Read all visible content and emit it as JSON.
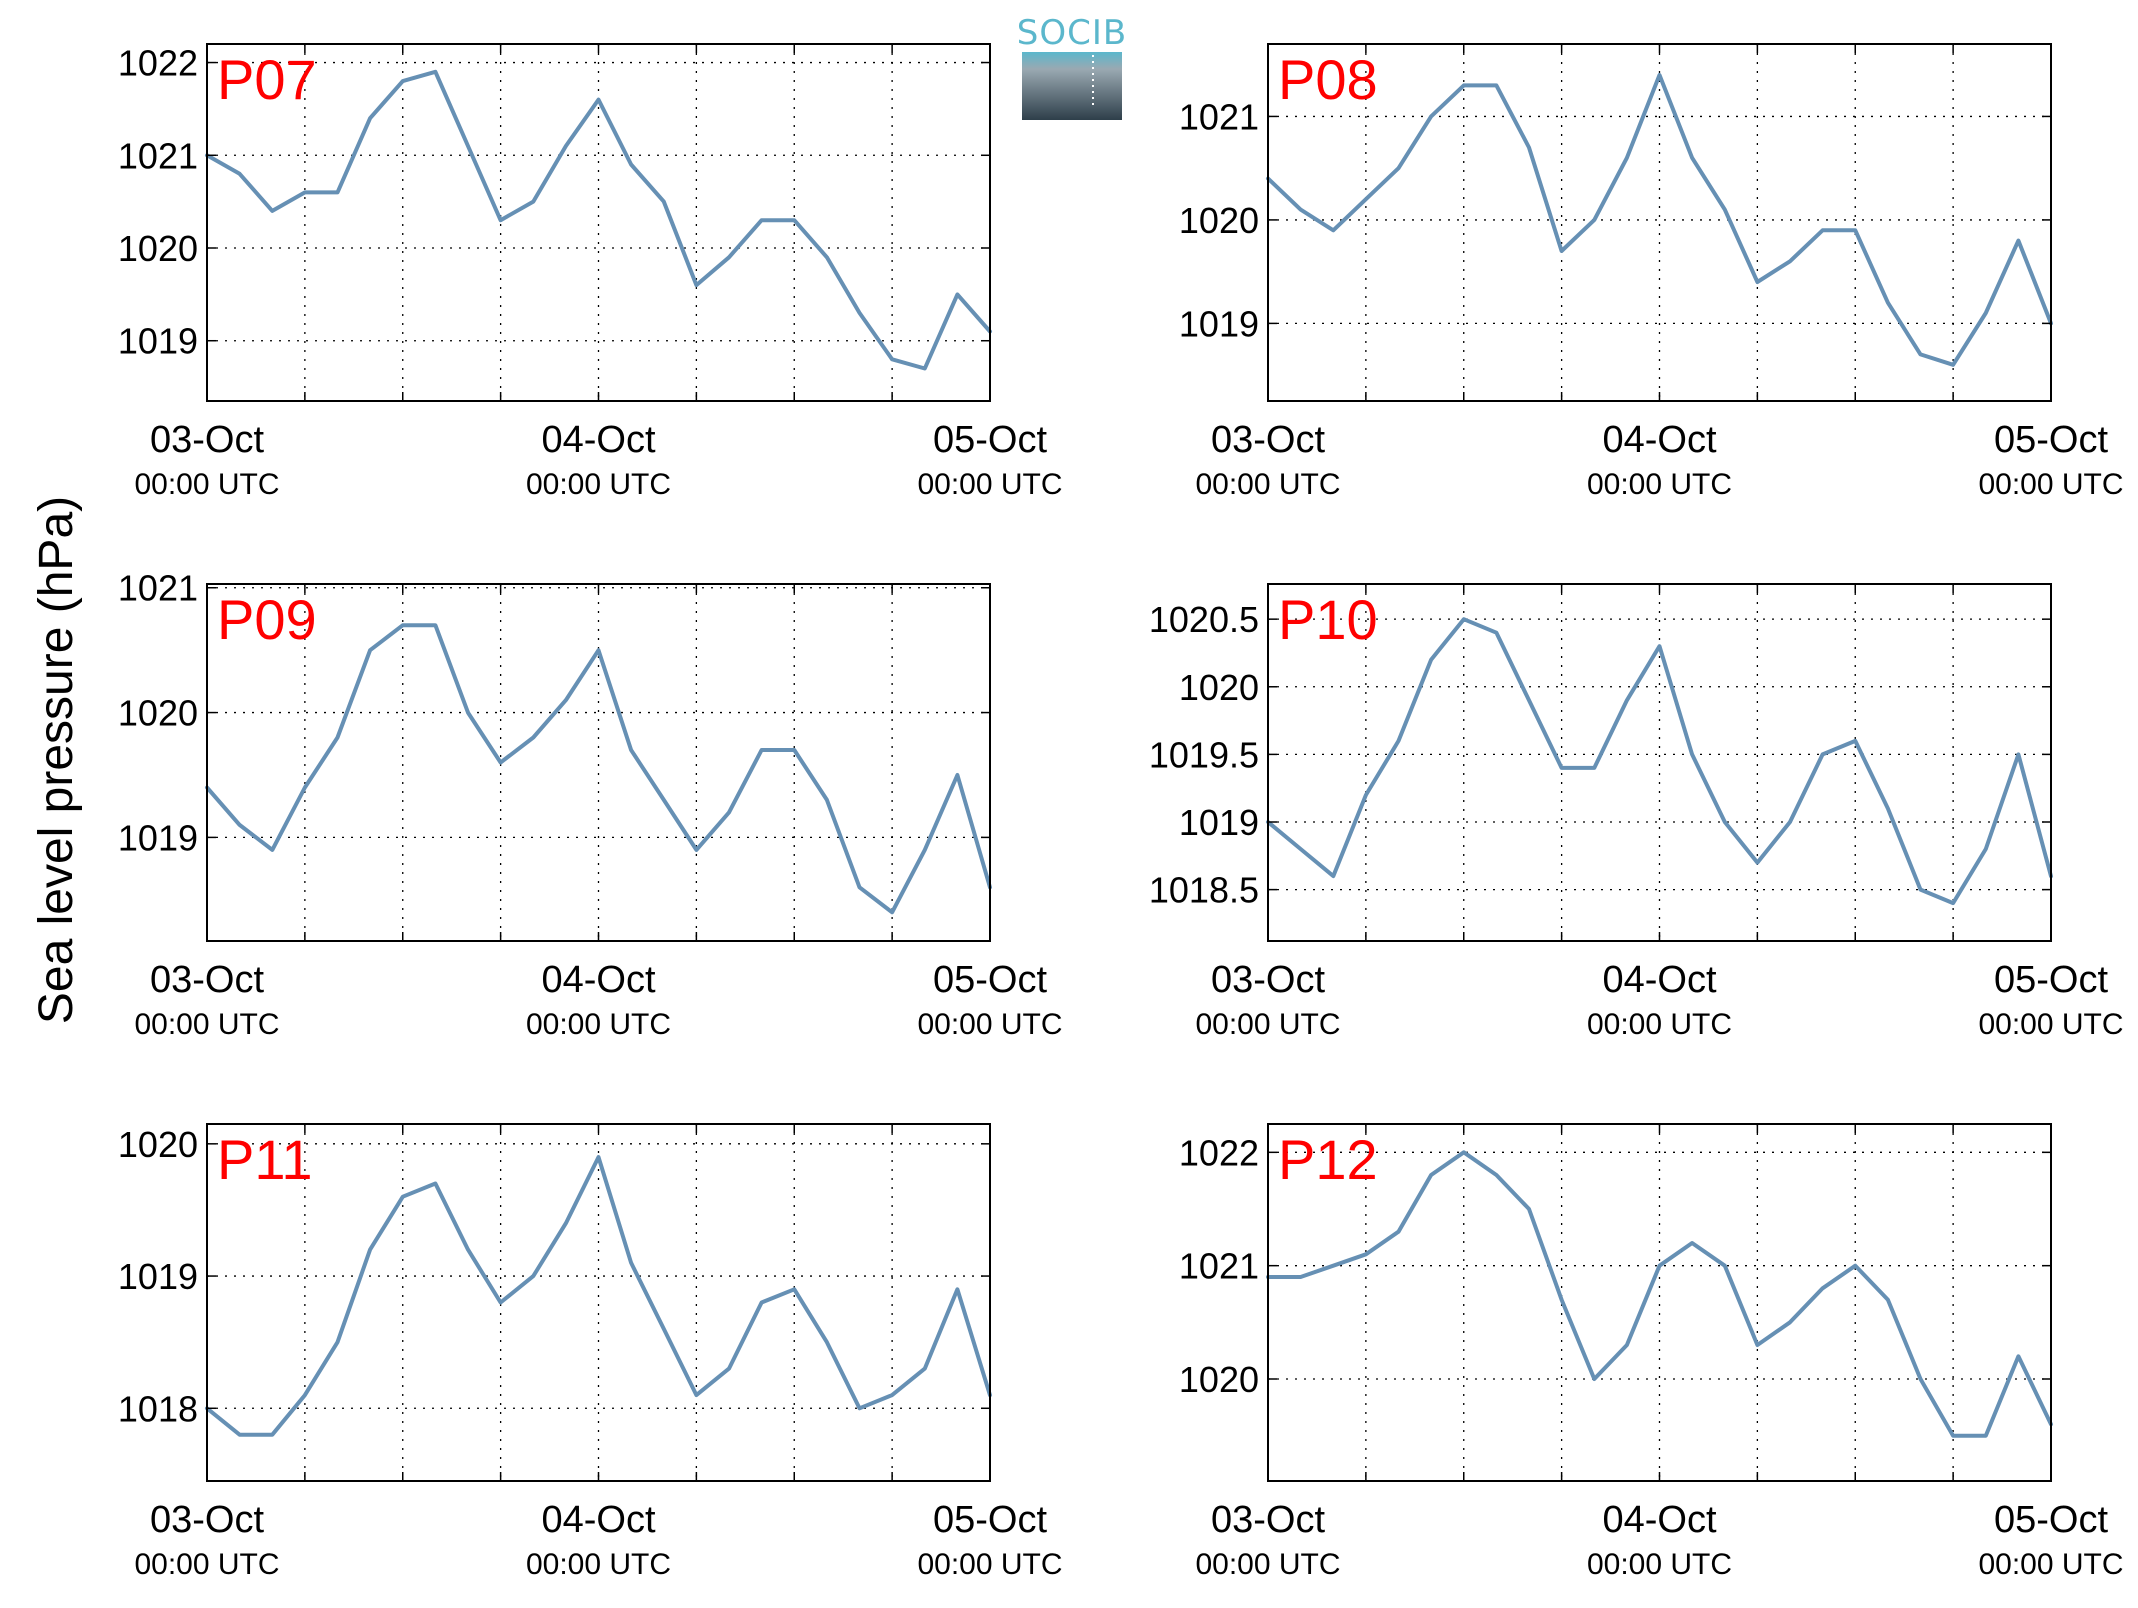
{
  "ylabel": "Sea level pressure (hPa)",
  "logo": {
    "text": "SOCIB",
    "colors": {
      "top": "#5bb7cc",
      "bottom": "#2e3f4a"
    }
  },
  "line_color": "#6690b4",
  "label_color": "#ff0000",
  "chart_data": [
    {
      "type": "line",
      "label": "P07",
      "x_range": [
        "03-Oct 00:00 UTC",
        "05-Oct 00:00 UTC"
      ],
      "x_ticks": [
        {
          "date": "03-Oct",
          "time": "00:00 UTC"
        },
        {
          "date": "04-Oct",
          "time": "00:00 UTC"
        },
        {
          "date": "05-Oct",
          "time": "00:00 UTC"
        }
      ],
      "y_ticks": [
        1019,
        1020,
        1021,
        1022
      ],
      "ylim": [
        1018.35,
        1022.2
      ],
      "grid": true,
      "x_hours": [
        0,
        2,
        4,
        6,
        8,
        10,
        12,
        14,
        16,
        18,
        20,
        22,
        24,
        26,
        28,
        30,
        32,
        34,
        36,
        38,
        40,
        42,
        44,
        46,
        48
      ],
      "values": [
        1021.0,
        1020.8,
        1020.4,
        1020.6,
        1020.6,
        1021.4,
        1021.8,
        1021.9,
        1021.1,
        1020.3,
        1020.5,
        1021.1,
        1021.6,
        1020.9,
        1020.5,
        1019.6,
        1019.9,
        1020.3,
        1020.3,
        1019.9,
        1019.3,
        1018.8,
        1018.7,
        1019.5,
        1019.1
      ]
    },
    {
      "type": "line",
      "label": "P08",
      "x_range": [
        "03-Oct 00:00 UTC",
        "05-Oct 00:00 UTC"
      ],
      "x_ticks": [
        {
          "date": "03-Oct",
          "time": "00:00 UTC"
        },
        {
          "date": "04-Oct",
          "time": "00:00 UTC"
        },
        {
          "date": "05-Oct",
          "time": "00:00 UTC"
        }
      ],
      "y_ticks": [
        1019,
        1020,
        1021
      ],
      "ylim": [
        1018.25,
        1021.7
      ],
      "grid": true,
      "x_hours": [
        0,
        2,
        4,
        6,
        8,
        10,
        12,
        14,
        16,
        18,
        20,
        22,
        24,
        26,
        28,
        30,
        32,
        34,
        36,
        38,
        40,
        42,
        44,
        46,
        48
      ],
      "values": [
        1020.4,
        1020.1,
        1019.9,
        1020.2,
        1020.5,
        1021.0,
        1021.3,
        1021.3,
        1020.7,
        1019.7,
        1020.0,
        1020.6,
        1021.4,
        1020.6,
        1020.1,
        1019.4,
        1019.6,
        1019.9,
        1019.9,
        1019.2,
        1018.7,
        1018.6,
        1019.1,
        1019.8,
        1019.0
      ]
    },
    {
      "type": "line",
      "label": "P09",
      "x_range": [
        "03-Oct 00:00 UTC",
        "05-Oct 00:00 UTC"
      ],
      "x_ticks": [
        {
          "date": "03-Oct",
          "time": "00:00 UTC"
        },
        {
          "date": "04-Oct",
          "time": "00:00 UTC"
        },
        {
          "date": "05-Oct",
          "time": "00:00 UTC"
        }
      ],
      "y_ticks": [
        1019,
        1020,
        1021
      ],
      "ylim": [
        1018.17,
        1021.03
      ],
      "grid": true,
      "x_hours": [
        0,
        2,
        4,
        6,
        8,
        10,
        12,
        14,
        16,
        18,
        20,
        22,
        24,
        26,
        28,
        30,
        32,
        34,
        36,
        38,
        40,
        42,
        44,
        46,
        48
      ],
      "values": [
        1019.4,
        1019.1,
        1018.9,
        1019.4,
        1019.8,
        1020.5,
        1020.7,
        1020.7,
        1020.0,
        1019.6,
        1019.8,
        1020.1,
        1020.5,
        1019.7,
        1019.3,
        1018.9,
        1019.2,
        1019.7,
        1019.7,
        1019.3,
        1018.6,
        1018.4,
        1018.9,
        1019.5,
        1018.6
      ]
    },
    {
      "type": "line",
      "label": "P10",
      "x_range": [
        "03-Oct 00:00 UTC",
        "05-Oct 00:00 UTC"
      ],
      "x_ticks": [
        {
          "date": "03-Oct",
          "time": "00:00 UTC"
        },
        {
          "date": "04-Oct",
          "time": "00:00 UTC"
        },
        {
          "date": "05-Oct",
          "time": "00:00 UTC"
        }
      ],
      "y_ticks": [
        1018.5,
        1019,
        1019.5,
        1020,
        1020.5
      ],
      "ylim": [
        1018.12,
        1020.76
      ],
      "grid": true,
      "x_hours": [
        0,
        2,
        4,
        6,
        8,
        10,
        12,
        14,
        16,
        18,
        20,
        22,
        24,
        26,
        28,
        30,
        32,
        34,
        36,
        38,
        40,
        42,
        44,
        46,
        48
      ],
      "values": [
        1019.0,
        1018.8,
        1018.6,
        1019.2,
        1019.6,
        1020.2,
        1020.5,
        1020.4,
        1019.9,
        1019.4,
        1019.4,
        1019.9,
        1020.3,
        1019.5,
        1019.0,
        1018.7,
        1019.0,
        1019.5,
        1019.6,
        1019.1,
        1018.5,
        1018.4,
        1018.8,
        1019.5,
        1018.6
      ]
    },
    {
      "type": "line",
      "label": "P11",
      "x_range": [
        "03-Oct 00:00 UTC",
        "05-Oct 00:00 UTC"
      ],
      "x_ticks": [
        {
          "date": "03-Oct",
          "time": "00:00 UTC"
        },
        {
          "date": "04-Oct",
          "time": "00:00 UTC"
        },
        {
          "date": "05-Oct",
          "time": "00:00 UTC"
        }
      ],
      "y_ticks": [
        1018,
        1019,
        1020
      ],
      "ylim": [
        1017.45,
        1020.15
      ],
      "grid": true,
      "x_hours": [
        0,
        2,
        4,
        6,
        8,
        10,
        12,
        14,
        16,
        18,
        20,
        22,
        24,
        26,
        28,
        30,
        32,
        34,
        36,
        38,
        40,
        42,
        44,
        46,
        48
      ],
      "values": [
        1018.0,
        1017.8,
        1017.8,
        1018.1,
        1018.5,
        1019.2,
        1019.6,
        1019.7,
        1019.2,
        1018.8,
        1019.0,
        1019.4,
        1019.9,
        1019.1,
        1018.6,
        1018.1,
        1018.3,
        1018.8,
        1018.9,
        1018.5,
        1018.0,
        1018.1,
        1018.3,
        1018.9,
        1018.1
      ]
    },
    {
      "type": "line",
      "label": "P12",
      "x_range": [
        "03-Oct 00:00 UTC",
        "05-Oct 00:00 UTC"
      ],
      "x_ticks": [
        {
          "date": "03-Oct",
          "time": "00:00 UTC"
        },
        {
          "date": "04-Oct",
          "time": "00:00 UTC"
        },
        {
          "date": "05-Oct",
          "time": "00:00 UTC"
        }
      ],
      "y_ticks": [
        1020,
        1021,
        1022
      ],
      "ylim": [
        1019.1,
        1022.25
      ],
      "grid": true,
      "x_hours": [
        0,
        2,
        4,
        6,
        8,
        10,
        12,
        14,
        16,
        18,
        20,
        22,
        24,
        26,
        28,
        30,
        32,
        34,
        36,
        38,
        40,
        42,
        44,
        46,
        48
      ],
      "values": [
        1020.9,
        1020.9,
        1021.0,
        1021.1,
        1021.3,
        1021.8,
        1022.0,
        1021.8,
        1021.5,
        1020.7,
        1020.0,
        1020.3,
        1021.0,
        1021.2,
        1021.0,
        1020.3,
        1020.5,
        1020.8,
        1021.0,
        1020.7,
        1020.0,
        1019.5,
        1019.5,
        1020.2,
        1019.6
      ]
    }
  ]
}
